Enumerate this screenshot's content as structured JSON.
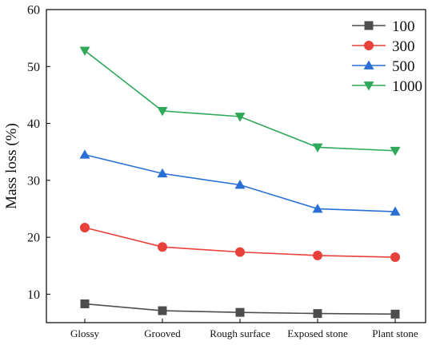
{
  "chart_data": {
    "type": "line",
    "title": "",
    "xlabel": "",
    "ylabel": "Mass loss (%)",
    "categories": [
      "Glossy",
      "Grooved",
      "Rough surface",
      "Exposed stone",
      "Plant stone"
    ],
    "ylim": [
      5,
      60
    ],
    "yticks": [
      10,
      20,
      30,
      40,
      50,
      60
    ],
    "grid": false,
    "legend_position": "top-right",
    "series": [
      {
        "name": "100",
        "color": "#4d4d4d",
        "marker": "square",
        "values": [
          8.3,
          7.1,
          6.8,
          6.6,
          6.5
        ]
      },
      {
        "name": "300",
        "color": "#e8403a",
        "marker": "circle",
        "values": [
          21.7,
          18.3,
          17.4,
          16.8,
          16.5
        ]
      },
      {
        "name": "500",
        "color": "#2a6fd6",
        "marker": "triangle-up",
        "values": [
          34.5,
          31.2,
          29.2,
          25.0,
          24.5
        ]
      },
      {
        "name": "1000",
        "color": "#2fa85a",
        "marker": "triangle-down",
        "values": [
          52.8,
          42.2,
          41.2,
          35.8,
          35.2
        ]
      }
    ]
  }
}
